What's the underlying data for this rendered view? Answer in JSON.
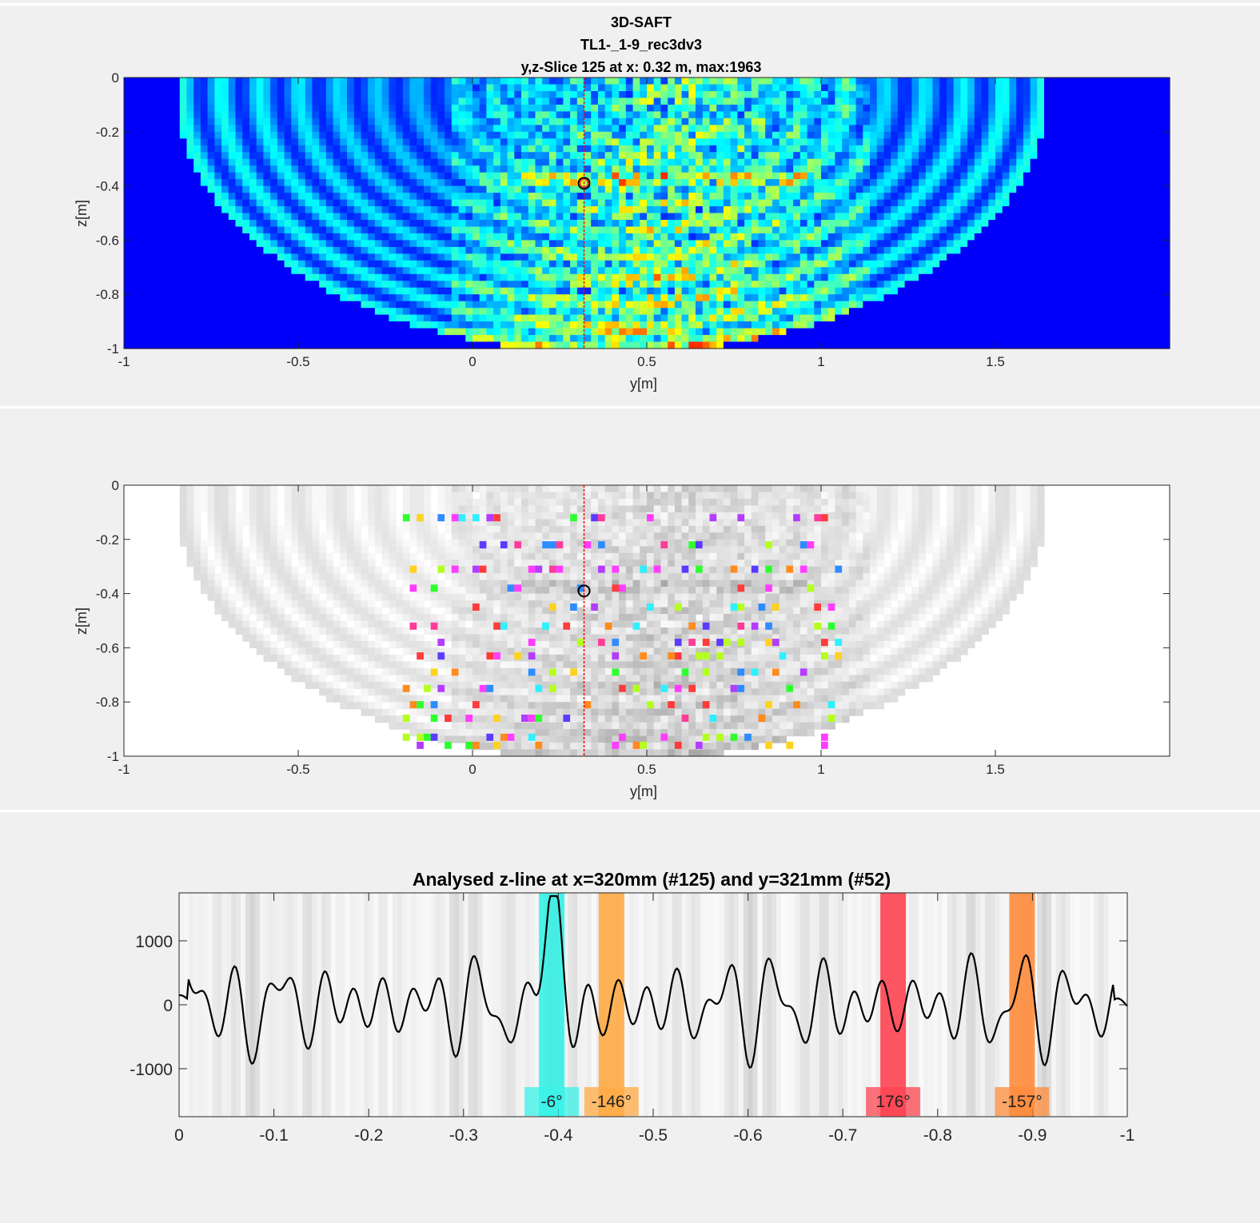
{
  "chart_data": [
    {
      "type": "heatmap",
      "title_lines": [
        "3D-SAFT",
        "TL1-_1-9_rec3dv3",
        "y,z-Slice 125 at x: 0.32 m, max:1963"
      ],
      "xlabel": "y[m]",
      "ylabel": "z[m]",
      "xlim": [
        -1,
        2
      ],
      "ylim": [
        -1,
        0
      ],
      "xticks": [
        "-1",
        "-0.5",
        "0",
        "0.5",
        "1",
        "1.5"
      ],
      "yticks": [
        "0",
        "-0.2",
        "-0.4",
        "-0.6",
        "-0.8",
        "-1"
      ],
      "colormap": "jet",
      "marker": {
        "y": 0.32,
        "z": -0.39
      },
      "slice_line_y": 0.32
    },
    {
      "type": "heatmap",
      "xlabel": "y[m]",
      "ylabel": "z[m]",
      "xlim": [
        -1,
        2
      ],
      "ylim": [
        -1,
        0
      ],
      "xticks": [
        "-1",
        "-0.5",
        "0",
        "0.5",
        "1",
        "1.5"
      ],
      "yticks": [
        "0",
        "-0.2",
        "-0.4",
        "-0.6",
        "-0.8",
        "-1"
      ],
      "colormap": "gray background with phase-colored picks",
      "marker": {
        "y": 0.32,
        "z": -0.39
      },
      "slice_line_y": 0.32
    },
    {
      "type": "line",
      "title": "Analysed z-line at x=320mm (#125) and y=321mm (#52)",
      "xlim": [
        0,
        -1
      ],
      "ylim": [
        -1750,
        1750
      ],
      "xticks": [
        "0",
        "-0.1",
        "-0.2",
        "-0.3",
        "-0.4",
        "-0.5",
        "-0.6",
        "-0.7",
        "-0.8",
        "-0.9",
        "-1"
      ],
      "yticks": [
        "1000",
        "0",
        "-1000"
      ],
      "highlights": [
        {
          "z": -0.393,
          "label": "-6°",
          "color": "#39f3e8"
        },
        {
          "z": -0.456,
          "label": "-146°",
          "color": "#ffab46"
        },
        {
          "z": -0.753,
          "label": "176°",
          "color": "#ff4452"
        },
        {
          "z": -0.889,
          "label": "-157°",
          "color": "#ff8c3c"
        }
      ]
    }
  ]
}
